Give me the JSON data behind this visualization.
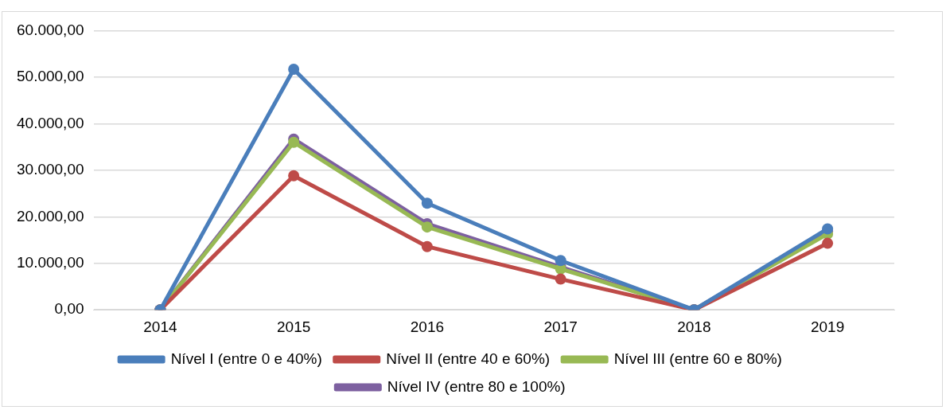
{
  "chart_data": {
    "type": "line",
    "categories": [
      "2014",
      "2015",
      "2016",
      "2017",
      "2018",
      "2019"
    ],
    "series": [
      {
        "name": "Nível I (entre 0 e 40%)",
        "color": "#4a7ebb",
        "values": [
          0,
          51700,
          22900,
          10600,
          0,
          17400
        ]
      },
      {
        "name": "Nível II (entre 40 e 60%)",
        "color": "#be4b48",
        "values": [
          0,
          28800,
          13600,
          6600,
          0,
          14300
        ]
      },
      {
        "name": "Nível III (entre 60 e 80%)",
        "color": "#98b954",
        "values": [
          0,
          36000,
          17800,
          8800,
          0,
          16300
        ]
      },
      {
        "name": "Nível IV (entre 80 e 100%)",
        "color": "#7d60a0",
        "values": [
          0,
          36700,
          18500,
          9200,
          0,
          16900
        ]
      }
    ],
    "ylim": [
      0,
      60000
    ],
    "yticks": [
      {
        "value": 0,
        "label": "0,00"
      },
      {
        "value": 10000,
        "label": "10.000,00"
      },
      {
        "value": 20000,
        "label": "20.000,00"
      },
      {
        "value": 30000,
        "label": "30.000,00"
      },
      {
        "value": 40000,
        "label": "40.000,00"
      },
      {
        "value": 50000,
        "label": "50.000,00"
      },
      {
        "value": 60000,
        "label": "60.000,00"
      }
    ],
    "grid": "y",
    "legend": "bottom",
    "marker": "circle",
    "line_style": "solid"
  }
}
